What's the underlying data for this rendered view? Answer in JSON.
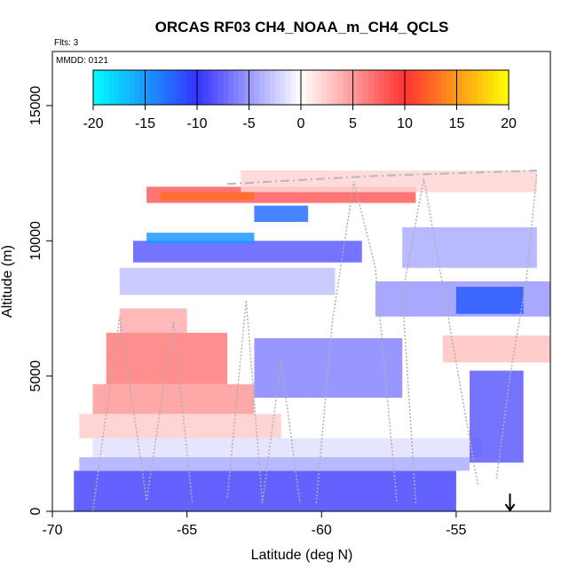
{
  "chart_data": {
    "type": "heatmap",
    "title": "ORCAS RF03 CH4_NOAA_m_CH4_QCLS",
    "subtitle": "Flts: 3",
    "annotation": "MMDD: 0121",
    "xlabel": "Latitude (deg N)",
    "ylabel": "Altitude (m)",
    "xlim": [
      -70,
      -51.5
    ],
    "ylim": [
      0,
      17000
    ],
    "xticks": [
      -70,
      -65,
      -60,
      -55
    ],
    "xtick_labels": [
      "-70",
      "-65",
      "-60",
      "-55"
    ],
    "yticks": [
      0,
      5000,
      10000,
      15000
    ],
    "ytick_labels": [
      "0",
      "5000",
      "10000",
      "15000"
    ],
    "colorbar": {
      "range": [
        -20,
        20
      ],
      "ticks": [
        -20,
        -15,
        -10,
        -5,
        0,
        5,
        10,
        15,
        20
      ],
      "tick_labels": [
        "-20",
        "-15",
        "-10",
        "-5",
        "0",
        "5",
        "10",
        "15",
        "20"
      ],
      "negative_colors": [
        "#00ffff",
        "#3333ff",
        "#ffffff"
      ],
      "positive_colors": [
        "#ffffff",
        "#ff3333",
        "#ffff00"
      ]
    },
    "marker": {
      "type": "arrow-down",
      "x": -53
    },
    "cells": [
      {
        "lat0": -69.2,
        "lat1": -55.0,
        "alt0": 0,
        "alt1": 1500,
        "value": -9
      },
      {
        "lat0": -69.0,
        "lat1": -54.5,
        "alt0": 1500,
        "alt1": 2000,
        "value": -4
      },
      {
        "lat0": -68.5,
        "lat1": -54.0,
        "alt0": 2000,
        "alt1": 2700,
        "value": -1.5
      },
      {
        "lat0": -69.0,
        "lat1": -61.5,
        "alt0": 2700,
        "alt1": 3600,
        "value": 2.5
      },
      {
        "lat0": -68.5,
        "lat1": -62.5,
        "alt0": 3600,
        "alt1": 4700,
        "value": 5
      },
      {
        "lat0": -68.0,
        "lat1": -63.5,
        "alt0": 4700,
        "alt1": 6600,
        "value": 6.5
      },
      {
        "lat0": -67.5,
        "lat1": -65.0,
        "alt0": 6600,
        "alt1": 7500,
        "value": 4
      },
      {
        "lat0": -62.5,
        "lat1": -57.0,
        "alt0": 4200,
        "alt1": 6400,
        "value": -6
      },
      {
        "lat0": -54.5,
        "lat1": -52.5,
        "alt0": 1800,
        "alt1": 5200,
        "value": -8
      },
      {
        "lat0": -55.5,
        "lat1": -51.5,
        "alt0": 5500,
        "alt1": 6500,
        "value": 3
      },
      {
        "lat0": -58.0,
        "lat1": -51.5,
        "alt0": 7200,
        "alt1": 8500,
        "value": -5
      },
      {
        "lat0": -55.0,
        "lat1": -52.5,
        "alt0": 7300,
        "alt1": 8300,
        "value": -12
      },
      {
        "lat0": -67.5,
        "lat1": -59.5,
        "alt0": 8000,
        "alt1": 9000,
        "value": -3
      },
      {
        "lat0": -57.0,
        "lat1": -52.0,
        "alt0": 9000,
        "alt1": 10500,
        "value": -4
      },
      {
        "lat0": -67.0,
        "lat1": -58.5,
        "alt0": 9200,
        "alt1": 10000,
        "value": -8
      },
      {
        "lat0": -66.5,
        "lat1": -62.5,
        "alt0": 9900,
        "alt1": 10300,
        "value": -15
      },
      {
        "lat0": -62.5,
        "lat1": -60.5,
        "alt0": 10700,
        "alt1": 11300,
        "value": -13
      },
      {
        "lat0": -66.5,
        "lat1": -56.5,
        "alt0": 11400,
        "alt1": 12000,
        "value": 8
      },
      {
        "lat0": -66.0,
        "lat1": -62.5,
        "alt0": 11500,
        "alt1": 11800,
        "value": 13
      },
      {
        "lat0": -63.0,
        "lat1": -52.0,
        "alt0": 11800,
        "alt1": 12600,
        "value": 2
      }
    ]
  }
}
